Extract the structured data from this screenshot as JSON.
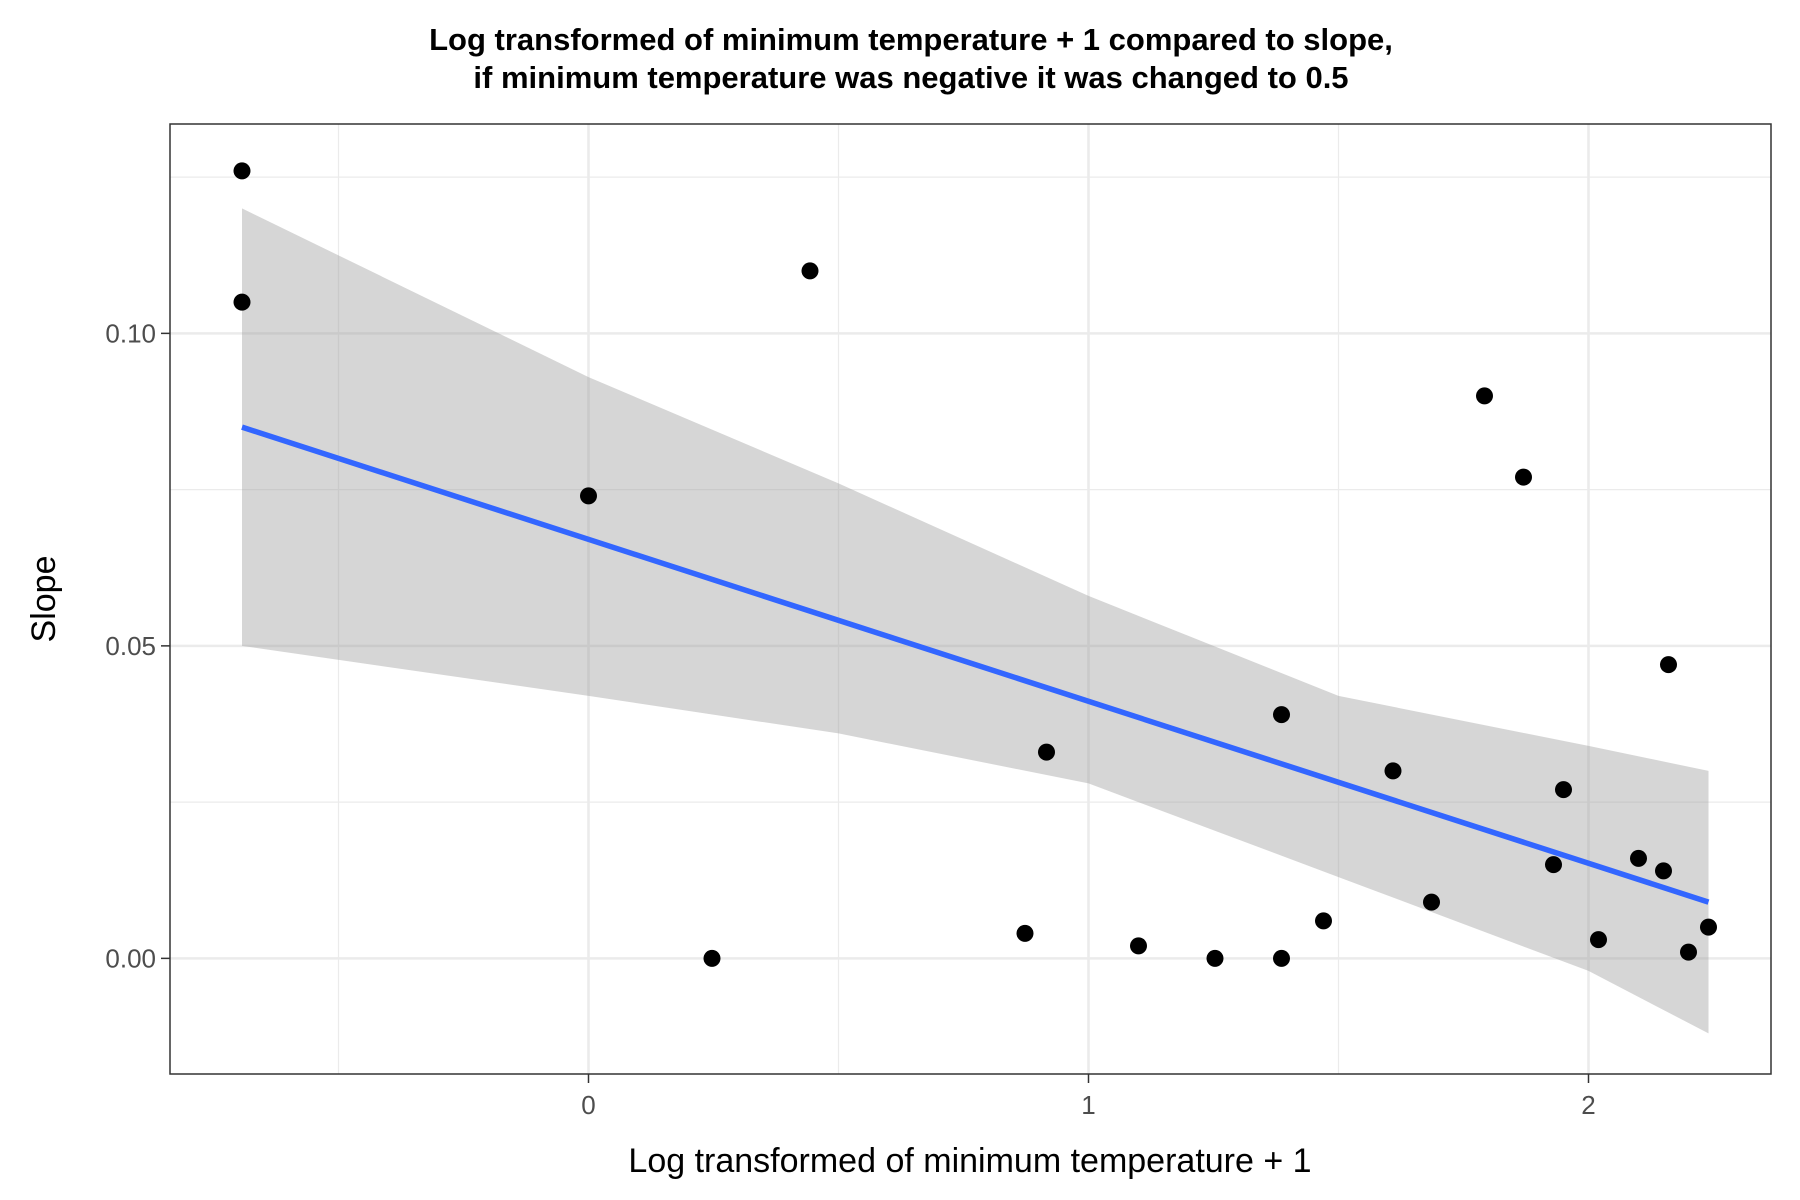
{
  "chart_data": {
    "type": "scatter",
    "title": "Log transformed of minimum temperature + 1 compared to slope,",
    "subtitle": "if minimum temperature was negative it was changed to 0.5",
    "xlabel": "Log transformed of minimum temperature + 1",
    "ylabel": "Slope",
    "xlim": [
      -0.837,
      2.365
    ],
    "ylim": [
      -0.0185,
      0.1335
    ],
    "x_ticks": [
      0,
      1,
      2
    ],
    "x_tick_labels": [
      "0",
      "1",
      "2"
    ],
    "x_minor_ticks": [
      -0.5,
      0.5,
      1.5
    ],
    "y_ticks": [
      0.0,
      0.05,
      0.1
    ],
    "y_tick_labels": [
      "0.00",
      "0.05",
      "0.10"
    ],
    "y_minor_ticks": [
      0.025,
      0.075,
      0.125
    ],
    "grid": true,
    "legend": "none",
    "colors": {
      "points": "#000000",
      "fit_line": "#3366ff",
      "confidence_band": "#999999",
      "grid": "#ebebeb",
      "panel_border": "#333333"
    },
    "points": [
      {
        "x": -0.693,
        "y": 0.126
      },
      {
        "x": -0.693,
        "y": 0.105
      },
      {
        "x": 0.0,
        "y": 0.074
      },
      {
        "x": 0.247,
        "y": 0.0
      },
      {
        "x": 0.443,
        "y": 0.11
      },
      {
        "x": 0.873,
        "y": 0.004
      },
      {
        "x": 0.916,
        "y": 0.033
      },
      {
        "x": 1.1,
        "y": 0.002
      },
      {
        "x": 1.253,
        "y": 0.0
      },
      {
        "x": 1.386,
        "y": 0.0
      },
      {
        "x": 1.386,
        "y": 0.039
      },
      {
        "x": 1.47,
        "y": 0.006
      },
      {
        "x": 1.609,
        "y": 0.03
      },
      {
        "x": 1.686,
        "y": 0.009
      },
      {
        "x": 1.792,
        "y": 0.09
      },
      {
        "x": 1.87,
        "y": 0.077
      },
      {
        "x": 1.93,
        "y": 0.015
      },
      {
        "x": 1.95,
        "y": 0.027
      },
      {
        "x": 2.02,
        "y": 0.003
      },
      {
        "x": 2.1,
        "y": 0.016
      },
      {
        "x": 2.15,
        "y": 0.014
      },
      {
        "x": 2.16,
        "y": 0.047
      },
      {
        "x": 2.2,
        "y": 0.001
      },
      {
        "x": 2.24,
        "y": 0.005
      }
    ],
    "fit_line": {
      "x": [
        -0.693,
        2.24
      ],
      "y": [
        0.085,
        0.009
      ]
    },
    "confidence_band": {
      "x": [
        -0.693,
        0.0,
        0.5,
        1.0,
        1.5,
        2.0,
        2.24
      ],
      "upper": [
        0.12,
        0.093,
        0.076,
        0.058,
        0.042,
        0.034,
        0.03
      ],
      "lower": [
        0.05,
        0.042,
        0.036,
        0.028,
        0.013,
        -0.002,
        -0.012
      ]
    }
  }
}
